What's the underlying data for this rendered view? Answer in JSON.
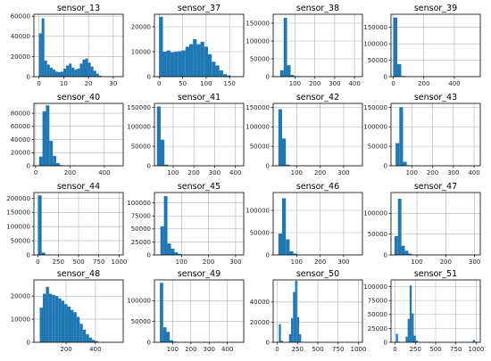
{
  "chart_data": [
    {
      "type": "bar",
      "title": "sensor_13",
      "grid": true,
      "xlim": [
        -2,
        34
      ],
      "ylim": [
        0,
        62000
      ],
      "xticks": [
        0,
        10,
        20,
        30
      ],
      "yticks": [
        0,
        20000,
        40000,
        60000
      ],
      "ytick_labels": [
        "0",
        "20000",
        "40000",
        "60000"
      ],
      "bins": [
        [
          0,
          1.1,
          43000
        ],
        [
          1.1,
          2.2,
          58000
        ],
        [
          2.2,
          3.3,
          16000
        ],
        [
          3.3,
          4.4,
          12000
        ],
        [
          4.4,
          5.5,
          9000
        ],
        [
          5.5,
          6.6,
          7000
        ],
        [
          6.6,
          7.7,
          5000
        ],
        [
          7.7,
          8.8,
          4500
        ],
        [
          8.8,
          9.9,
          5000
        ],
        [
          9.9,
          11,
          8000
        ],
        [
          11,
          12.1,
          11000
        ],
        [
          12.1,
          13.2,
          13000
        ],
        [
          13.2,
          14.3,
          9000
        ],
        [
          14.3,
          15.4,
          7000
        ],
        [
          15.4,
          16.5,
          8000
        ],
        [
          16.5,
          17.6,
          13000
        ],
        [
          17.6,
          18.7,
          17000
        ],
        [
          18.7,
          19.8,
          18000
        ],
        [
          19.8,
          20.9,
          14000
        ],
        [
          20.9,
          22,
          10000
        ],
        [
          22,
          23.1,
          6000
        ],
        [
          23.1,
          24.2,
          3000
        ],
        [
          24.2,
          25.3,
          1000
        ]
      ]
    },
    {
      "type": "bar",
      "title": "sensor_37",
      "grid": true,
      "xlim": [
        -10,
        180
      ],
      "ylim": [
        0,
        25000
      ],
      "xticks": [
        0,
        50,
        100,
        150
      ],
      "yticks": [
        0,
        10000,
        20000
      ],
      "ytick_labels": [
        "0",
        "10000",
        "20000"
      ],
      "bins": [
        [
          0,
          8,
          24000
        ],
        [
          8,
          16,
          10000
        ],
        [
          16,
          24,
          10500
        ],
        [
          24,
          32,
          9800
        ],
        [
          32,
          40,
          10000
        ],
        [
          40,
          48,
          10200
        ],
        [
          48,
          56,
          10500
        ],
        [
          56,
          64,
          12000
        ],
        [
          64,
          72,
          13000
        ],
        [
          72,
          80,
          15000
        ],
        [
          80,
          88,
          13000
        ],
        [
          88,
          96,
          14000
        ],
        [
          96,
          104,
          12000
        ],
        [
          104,
          112,
          9000
        ],
        [
          112,
          120,
          6000
        ],
        [
          120,
          128,
          4500
        ],
        [
          128,
          136,
          2500
        ],
        [
          136,
          144,
          1000
        ],
        [
          144,
          152,
          500
        ]
      ]
    },
    {
      "type": "bar",
      "title": "sensor_38",
      "grid": true,
      "xlim": [
        -10,
        440
      ],
      "ylim": [
        0,
        175000
      ],
      "xticks": [
        100,
        200,
        300,
        400
      ],
      "yticks": [
        0,
        50000,
        100000,
        150000
      ],
      "ytick_labels": [
        "0",
        "50000",
        "100000",
        "150000"
      ],
      "bins": [
        [
          25,
          43,
          18000
        ],
        [
          43,
          60,
          165000
        ],
        [
          60,
          78,
          32000
        ],
        [
          78,
          95,
          5000
        ],
        [
          95,
          113,
          1500
        ]
      ]
    },
    {
      "type": "bar",
      "title": "sensor_39",
      "grid": true,
      "xlim": [
        -15,
        570
      ],
      "ylim": [
        0,
        190000
      ],
      "xticks": [
        0,
        200,
        400
      ],
      "yticks": [
        0,
        50000,
        100000,
        150000
      ],
      "ytick_labels": [
        "0",
        "50000",
        "100000",
        "150000"
      ],
      "bins": [
        [
          0,
          26,
          180000
        ],
        [
          26,
          52,
          38000
        ],
        [
          52,
          78,
          2000
        ]
      ]
    },
    {
      "type": "bar",
      "title": "sensor_40",
      "grid": true,
      "xlim": [
        -10,
        510
      ],
      "ylim": [
        0,
        95000
      ],
      "xticks": [
        0,
        200,
        400
      ],
      "yticks": [
        0,
        20000,
        40000,
        60000,
        80000
      ],
      "ytick_labels": [
        "0",
        "20000",
        "40000",
        "60000",
        "80000"
      ],
      "bins": [
        [
          20,
          40,
          14000
        ],
        [
          40,
          60,
          83000
        ],
        [
          60,
          80,
          92000
        ],
        [
          80,
          100,
          38000
        ],
        [
          100,
          120,
          15000
        ],
        [
          120,
          140,
          4000
        ],
        [
          140,
          160,
          1000
        ]
      ]
    },
    {
      "type": "bar",
      "title": "sensor_41",
      "grid": true,
      "xlim": [
        10,
        440
      ],
      "ylim": [
        0,
        160000
      ],
      "xticks": [
        100,
        200,
        300,
        400
      ],
      "yticks": [
        0,
        50000,
        100000,
        150000
      ],
      "ytick_labels": [
        "0",
        "50000",
        "100000",
        "150000"
      ],
      "bins": [
        [
          22,
          40,
          152000
        ],
        [
          40,
          58,
          67000
        ],
        [
          58,
          76,
          3000
        ]
      ]
    },
    {
      "type": "bar",
      "title": "sensor_42",
      "grid": true,
      "xlim": [
        0,
        380
      ],
      "ylim": [
        0,
        160000
      ],
      "xticks": [
        100,
        200,
        300
      ],
      "yticks": [
        0,
        50000,
        100000,
        150000
      ],
      "ytick_labels": [
        "0",
        "50000",
        "100000",
        "150000"
      ],
      "bins": [
        [
          22,
          38,
          145000
        ],
        [
          38,
          54,
          70000
        ],
        [
          54,
          70,
          3000
        ]
      ]
    },
    {
      "type": "bar",
      "title": "sensor_43",
      "grid": true,
      "xlim": [
        0,
        430
      ],
      "ylim": [
        0,
        160000
      ],
      "xticks": [
        100,
        200,
        300,
        400
      ],
      "yticks": [
        0,
        50000,
        100000,
        150000
      ],
      "ytick_labels": [
        "0",
        "50000",
        "100000",
        "150000"
      ],
      "bins": [
        [
          22,
          40,
          58000
        ],
        [
          40,
          58,
          150000
        ],
        [
          58,
          76,
          10000
        ],
        [
          76,
          94,
          1500
        ]
      ]
    },
    {
      "type": "bar",
      "title": "sensor_44",
      "grid": true,
      "xlim": [
        -50,
        1050
      ],
      "ylim": [
        0,
        220000
      ],
      "xticks": [
        0,
        250,
        500,
        750,
        1000
      ],
      "yticks": [
        0,
        50000,
        100000,
        150000,
        200000
      ],
      "ytick_labels": [
        "0",
        "50000",
        "100000",
        "150000",
        "200000"
      ],
      "bins": [
        [
          0,
          45,
          210000
        ],
        [
          45,
          90,
          8000
        ]
      ]
    },
    {
      "type": "bar",
      "title": "sensor_45",
      "grid": true,
      "xlim": [
        0,
        330
      ],
      "ylim": [
        0,
        120000
      ],
      "xticks": [
        100,
        200,
        300
      ],
      "yticks": [
        0,
        25000,
        50000,
        75000,
        100000
      ],
      "ytick_labels": [
        "0",
        "25000",
        "50000",
        "75000",
        "100000"
      ],
      "bins": [
        [
          22,
          35,
          55000
        ],
        [
          35,
          48,
          113000
        ],
        [
          48,
          61,
          22000
        ],
        [
          61,
          74,
          12000
        ],
        [
          74,
          87,
          5000
        ],
        [
          87,
          100,
          2000
        ]
      ]
    },
    {
      "type": "bar",
      "title": "sensor_46",
      "grid": true,
      "xlim": [
        0,
        380
      ],
      "ylim": [
        0,
        140000
      ],
      "xticks": [
        100,
        200,
        300
      ],
      "yticks": [
        0,
        50000,
        100000
      ],
      "ytick_labels": [
        "0",
        "50000",
        "100000"
      ],
      "bins": [
        [
          22,
          38,
          48000
        ],
        [
          38,
          54,
          127000
        ],
        [
          54,
          70,
          35000
        ],
        [
          70,
          86,
          8000
        ],
        [
          86,
          102,
          3000
        ],
        [
          102,
          118,
          1000
        ]
      ]
    },
    {
      "type": "bar",
      "title": "sensor_47",
      "grid": true,
      "xlim": [
        10,
        320
      ],
      "ylim": [
        0,
        150000
      ],
      "xticks": [
        100,
        200,
        300
      ],
      "yticks": [
        0,
        50000,
        100000
      ],
      "ytick_labels": [
        "0",
        "50000",
        "100000"
      ],
      "bins": [
        [
          22,
          34,
          45000
        ],
        [
          34,
          46,
          135000
        ],
        [
          46,
          58,
          22000
        ],
        [
          58,
          70,
          10000
        ],
        [
          70,
          82,
          3000
        ],
        [
          82,
          94,
          1000
        ]
      ]
    },
    {
      "type": "bar",
      "title": "sensor_48",
      "grid": true,
      "xlim": [
        -20,
        590
      ],
      "ylim": [
        0,
        27000
      ],
      "xticks": [
        200,
        400
      ],
      "yticks": [
        0,
        10000,
        20000
      ],
      "ytick_labels": [
        "0",
        "10000",
        "20000"
      ],
      "bins": [
        [
          20,
          41,
          15000
        ],
        [
          41,
          62,
          21000
        ],
        [
          62,
          83,
          24000
        ],
        [
          83,
          104,
          21000
        ],
        [
          104,
          125,
          20500
        ],
        [
          125,
          146,
          20000
        ],
        [
          146,
          167,
          19000
        ],
        [
          167,
          188,
          18000
        ],
        [
          188,
          209,
          16500
        ],
        [
          209,
          230,
          15500
        ],
        [
          230,
          251,
          14000
        ],
        [
          251,
          272,
          13000
        ],
        [
          272,
          293,
          11000
        ],
        [
          293,
          314,
          8000
        ],
        [
          314,
          335,
          5500
        ],
        [
          335,
          356,
          3500
        ],
        [
          356,
          377,
          2000
        ],
        [
          377,
          398,
          1000
        ],
        [
          398,
          419,
          500
        ]
      ]
    },
    {
      "type": "bar",
      "title": "sensor_49",
      "grid": true,
      "xlim": [
        0,
        490
      ],
      "ylim": [
        0,
        150000
      ],
      "xticks": [
        100,
        200,
        300,
        400
      ],
      "yticks": [
        0,
        50000,
        100000
      ],
      "ytick_labels": [
        "0",
        "50000",
        "100000"
      ],
      "bins": [
        [
          30,
          48,
          143000
        ],
        [
          48,
          66,
          36000
        ],
        [
          66,
          84,
          25000
        ],
        [
          84,
          102,
          5000
        ],
        [
          102,
          120,
          1500
        ]
      ]
    },
    {
      "type": "bar",
      "title": "sensor_50",
      "grid": true,
      "xlim": [
        -50,
        1050
      ],
      "ylim": [
        0,
        62000
      ],
      "xticks": [
        0,
        250,
        500,
        750,
        1000
      ],
      "yticks": [
        0,
        20000,
        40000
      ],
      "ytick_labels": [
        "0",
        "20000",
        "40000"
      ],
      "bins": [
        [
          20,
          45,
          18000
        ],
        [
          45,
          70,
          1500
        ],
        [
          145,
          170,
          8000
        ],
        [
          170,
          195,
          24000
        ],
        [
          195,
          220,
          50000
        ],
        [
          220,
          245,
          61000
        ],
        [
          245,
          270,
          25000
        ],
        [
          270,
          295,
          8000
        ]
      ]
    },
    {
      "type": "bar",
      "title": "sensor_51",
      "grid": true,
      "xlim": [
        -50,
        1050
      ],
      "ylim": [
        0,
        112000
      ],
      "xticks": [
        0,
        250,
        500,
        750,
        1000
      ],
      "yticks": [
        0,
        25000,
        50000,
        75000,
        100000
      ],
      "ytick_labels": [
        "0",
        "25000",
        "50000",
        "75000",
        "100000"
      ],
      "bins": [
        [
          10,
          35,
          15000
        ],
        [
          35,
          60,
          1000
        ],
        [
          130,
          155,
          10000
        ],
        [
          155,
          180,
          42000
        ],
        [
          180,
          205,
          102000
        ],
        [
          205,
          230,
          52000
        ],
        [
          230,
          255,
          12000
        ],
        [
          255,
          280,
          3000
        ],
        [
          960,
          985,
          4000
        ]
      ]
    }
  ]
}
